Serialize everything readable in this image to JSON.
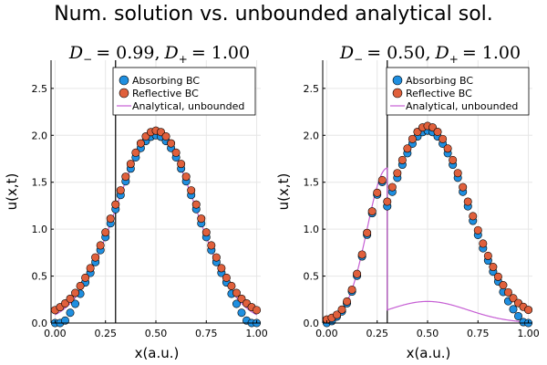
{
  "figure": {
    "title": "Num. solution vs. unbounded analytical sol."
  },
  "colors": {
    "absorbing": "#1f8fe0",
    "reflective": "#e0603c",
    "analytical": "#c65fd4",
    "grid": "#e6e6e6",
    "interface": "#000000"
  },
  "chart_data": [
    {
      "type": "scatter",
      "title": "D₋ = 0.99, D₊ = 1.00",
      "title_parts": {
        "d_minus_label": "D",
        "d_minus_sub": "−",
        "d_minus_value": "= 0.99,",
        "d_plus_label": "D",
        "d_plus_sub": "+",
        "d_plus_value": "= 1.00"
      },
      "xlabel": "x(a.u.)",
      "ylabel": "u(x,t)",
      "xlim": [
        -0.02,
        1.02
      ],
      "ylim": [
        0,
        2.8
      ],
      "xticks": [
        0.0,
        0.25,
        0.5,
        0.75,
        1.0
      ],
      "xtick_labels": [
        "0.00",
        "0.25",
        "0.50",
        "0.75",
        "1.00"
      ],
      "yticks": [
        0.0,
        0.5,
        1.0,
        1.5,
        2.0,
        2.5
      ],
      "ytick_labels": [
        "0.0",
        "0.5",
        "1.0",
        "1.5",
        "2.0",
        "2.5"
      ],
      "grid": true,
      "interface_x": 0.3,
      "legend": {
        "position": "top-right",
        "entries": [
          "Absorbing BC",
          "Reflective BC",
          "Analytical, unbounded"
        ]
      },
      "series": [
        {
          "name": "Absorbing BC",
          "kind": "points",
          "model": "absorbing",
          "amp": 2.0,
          "center": 0.5,
          "sigma": 0.2,
          "n": 41
        },
        {
          "name": "Reflective BC",
          "kind": "points",
          "model": "reflective",
          "amp": 2.0,
          "center": 0.5,
          "sigma": 0.2,
          "n": 41
        },
        {
          "name": "Analytical, unbounded",
          "kind": "line",
          "model": "gauss",
          "amp": 2.0,
          "center": 0.5,
          "sigma": 0.2
        }
      ]
    },
    {
      "type": "scatter",
      "title": "D₋ = 0.50, D₊ = 1.00",
      "title_parts": {
        "d_minus_label": "D",
        "d_minus_sub": "−",
        "d_minus_value": "= 0.50,",
        "d_plus_label": "D",
        "d_plus_sub": "+",
        "d_plus_value": "= 1.00"
      },
      "xlabel": "x(a.u.)",
      "ylabel": "u(x,t)",
      "xlim": [
        -0.02,
        1.02
      ],
      "ylim": [
        0,
        2.8
      ],
      "xticks": [
        0.0,
        0.25,
        0.5,
        0.75,
        1.0
      ],
      "xtick_labels": [
        "0.00",
        "0.25",
        "0.50",
        "0.75",
        "1.00"
      ],
      "yticks": [
        0.0,
        0.5,
        1.0,
        1.5,
        2.0,
        2.5
      ],
      "ytick_labels": [
        "0.0",
        "0.5",
        "1.0",
        "1.5",
        "2.0",
        "2.5"
      ],
      "grid": true,
      "interface_x": 0.3,
      "legend": {
        "position": "top-right",
        "entries": [
          "Absorbing BC",
          "Reflective BC",
          "Analytical, unbounded"
        ]
      },
      "series": [
        {
          "name": "Absorbing BC",
          "kind": "points",
          "model": "absorbing-left",
          "amp": 2.05,
          "center": 0.5,
          "sigma": 0.2,
          "left_amp": 1.55,
          "left_sigma": 0.1,
          "n": 41
        },
        {
          "name": "Reflective BC",
          "kind": "points",
          "model": "reflective-left",
          "amp": 2.05,
          "center": 0.5,
          "sigma": 0.2,
          "left_amp": 1.55,
          "left_sigma": 0.1,
          "n": 41
        },
        {
          "name": "Analytical, unbounded",
          "kind": "line",
          "model": "split",
          "left_amp": 1.65,
          "left_sigma": 0.1,
          "right_amp": 0.23,
          "right_sigma": 0.2,
          "center": 0.5
        }
      ]
    }
  ]
}
